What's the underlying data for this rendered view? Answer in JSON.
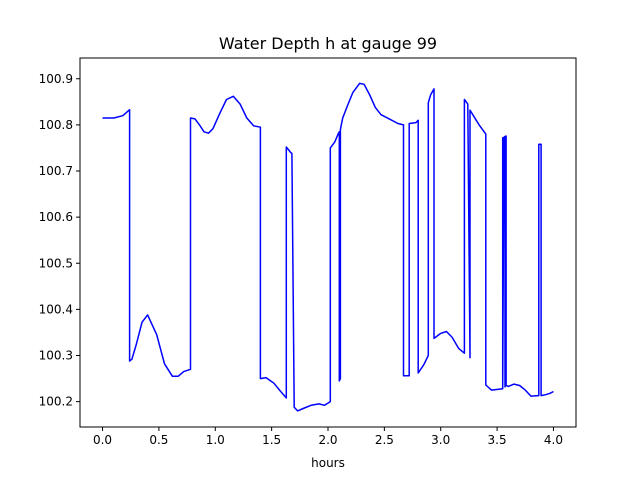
{
  "chart_data": {
    "type": "line",
    "title": "Water Depth h at gauge 99",
    "xlabel": "hours",
    "ylabel": "",
    "xlim": [
      -0.2,
      4.2
    ],
    "ylim": [
      100.145,
      100.945
    ],
    "xticks": [
      0.0,
      0.5,
      1.0,
      1.5,
      2.0,
      2.5,
      3.0,
      3.5,
      4.0
    ],
    "xtick_labels": [
      "0.0",
      "0.5",
      "1.0",
      "1.5",
      "2.0",
      "2.5",
      "3.0",
      "3.5",
      "4.0"
    ],
    "yticks": [
      100.2,
      100.3,
      100.4,
      100.5,
      100.6,
      100.7,
      100.8,
      100.9
    ],
    "ytick_labels": [
      "100.2",
      "100.3",
      "100.4",
      "100.5",
      "100.6",
      "100.7",
      "100.8",
      "100.9"
    ],
    "grid": false,
    "colors": {
      "line": "#0000ff"
    },
    "series": [
      {
        "x": [
          0.0,
          0.1,
          0.18,
          0.24,
          0.24,
          0.26,
          0.3,
          0.35,
          0.4,
          0.43,
          0.48,
          0.55,
          0.62,
          0.67,
          0.72,
          0.78,
          0.78,
          0.82,
          0.86,
          0.9,
          0.94,
          0.98,
          1.04,
          1.1,
          1.16,
          1.22,
          1.28,
          1.34,
          1.4,
          1.4,
          1.45,
          1.52,
          1.58,
          1.63,
          1.63,
          1.67,
          1.68,
          1.7,
          1.73,
          1.78,
          1.85,
          1.92,
          1.97,
          2.02,
          2.02,
          2.06,
          2.09,
          2.1,
          2.1,
          2.11,
          2.11,
          2.13,
          2.17,
          2.22,
          2.28,
          2.32,
          2.37,
          2.42,
          2.47,
          2.55,
          2.62,
          2.67,
          2.67,
          2.72,
          2.72,
          2.78,
          2.8,
          2.8,
          2.85,
          2.89,
          2.89,
          2.91,
          2.94,
          2.94,
          3.0,
          3.05,
          3.1,
          3.16,
          3.21,
          3.21,
          3.24,
          3.26,
          3.26,
          3.29,
          3.34,
          3.4,
          3.4,
          3.45,
          3.55,
          3.55,
          3.55,
          3.56,
          3.57,
          3.57,
          3.58,
          3.58,
          3.6,
          3.65,
          3.7,
          3.75,
          3.8,
          3.87,
          3.87,
          3.89,
          3.89,
          3.93,
          3.97,
          4.0
        ],
        "y": [
          100.815,
          100.815,
          100.82,
          100.833,
          100.288,
          100.292,
          100.325,
          100.372,
          100.388,
          100.372,
          100.345,
          100.282,
          100.255,
          100.255,
          100.265,
          100.27,
          100.815,
          100.813,
          100.8,
          100.785,
          100.782,
          100.792,
          100.825,
          100.855,
          100.862,
          100.845,
          100.815,
          100.798,
          100.795,
          100.25,
          100.252,
          100.24,
          100.222,
          100.208,
          100.752,
          100.74,
          100.738,
          100.188,
          100.18,
          100.185,
          100.192,
          100.195,
          100.192,
          100.2,
          100.75,
          100.763,
          100.78,
          100.785,
          100.245,
          100.25,
          100.79,
          100.815,
          100.84,
          100.87,
          100.89,
          100.888,
          100.865,
          100.838,
          100.822,
          100.812,
          100.803,
          100.8,
          100.256,
          100.256,
          100.803,
          100.805,
          100.81,
          100.262,
          100.28,
          100.3,
          100.848,
          100.865,
          100.878,
          100.337,
          100.348,
          100.352,
          100.34,
          100.315,
          100.305,
          100.855,
          100.845,
          100.295,
          100.832,
          100.82,
          100.8,
          100.78,
          100.236,
          100.225,
          100.228,
          100.772,
          100.232,
          100.773,
          100.775,
          100.232,
          100.776,
          100.235,
          100.233,
          100.238,
          100.235,
          100.225,
          100.212,
          100.213,
          100.758,
          100.758,
          100.213,
          100.215,
          100.218,
          100.222
        ]
      }
    ]
  }
}
